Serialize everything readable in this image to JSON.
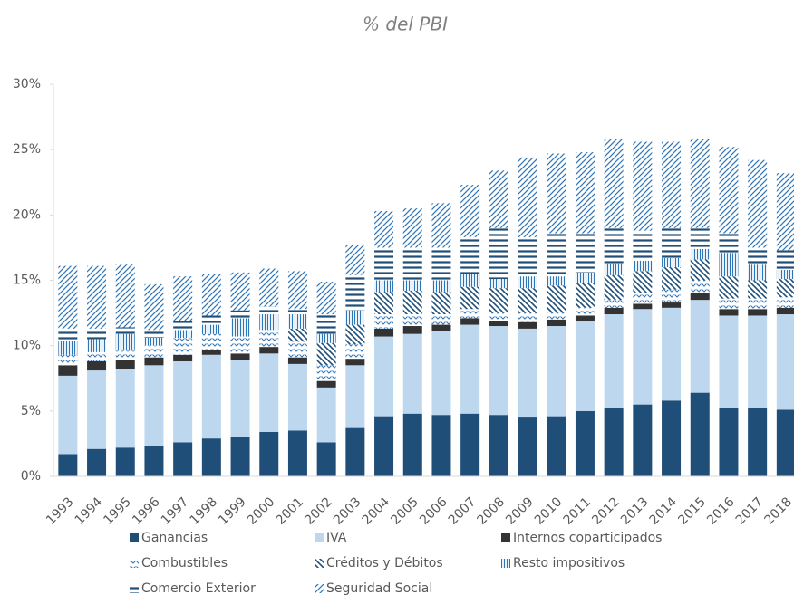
{
  "chart_data": {
    "type": "stacked-bar",
    "title": "% del PBI",
    "categories": [
      "1993",
      "1994",
      "1995",
      "1996",
      "1997",
      "1998",
      "1999",
      "2000",
      "2001",
      "2002",
      "2003",
      "2004",
      "2005",
      "2006",
      "2007",
      "2008",
      "2009",
      "2010",
      "2011",
      "2012",
      "2013",
      "2014",
      "2015",
      "2016",
      "2017",
      "2018"
    ],
    "series": [
      {
        "name": "Ganancias",
        "color": "#1f4e79",
        "pattern": "solid",
        "values": [
          1.7,
          2.1,
          2.2,
          2.3,
          2.6,
          2.9,
          3.0,
          3.4,
          3.5,
          2.6,
          3.7,
          4.6,
          4.8,
          4.7,
          4.8,
          4.7,
          4.5,
          4.6,
          5.0,
          5.2,
          5.5,
          5.8,
          6.4,
          5.2,
          5.2,
          5.1
        ]
      },
      {
        "name": "IVA",
        "color": "#bdd7ee",
        "pattern": "solid",
        "values": [
          6.0,
          6.0,
          6.0,
          6.2,
          6.2,
          6.4,
          5.9,
          6.0,
          5.1,
          4.2,
          4.8,
          6.1,
          6.1,
          6.4,
          6.8,
          6.8,
          6.8,
          6.9,
          6.9,
          7.2,
          7.3,
          7.1,
          7.1,
          7.1,
          7.1,
          7.3
        ]
      },
      {
        "name": "Internos coparticipados",
        "color": "#333333",
        "pattern": "solid",
        "values": [
          0.8,
          0.7,
          0.7,
          0.6,
          0.5,
          0.4,
          0.5,
          0.5,
          0.5,
          0.5,
          0.5,
          0.6,
          0.6,
          0.5,
          0.5,
          0.4,
          0.5,
          0.5,
          0.4,
          0.5,
          0.4,
          0.4,
          0.5,
          0.5,
          0.5,
          0.5
        ]
      },
      {
        "name": "Combustibles",
        "color": "#2e75b6",
        "pattern": "chevron",
        "values": [
          0.8,
          0.7,
          0.7,
          0.9,
          1.3,
          1.2,
          1.3,
          1.3,
          1.2,
          1.2,
          1.1,
          1.1,
          0.9,
          0.8,
          0.7,
          0.6,
          0.7,
          0.6,
          0.6,
          0.6,
          0.8,
          1.0,
          1.0,
          0.8,
          0.8,
          0.8
        ]
      },
      {
        "name": "Créditos y Débitos",
        "color": "#1f4e79",
        "pattern": "backslash",
        "values": [
          0,
          0,
          0,
          0,
          0,
          0,
          0,
          0,
          1.0,
          1.7,
          1.5,
          1.7,
          1.8,
          1.7,
          1.7,
          1.9,
          1.9,
          2.0,
          1.9,
          1.9,
          1.7,
          1.7,
          1.6,
          1.7,
          1.4,
          1.4
        ]
      },
      {
        "name": "Resto impositivos",
        "color": "#2e75b6",
        "pattern": "vertical",
        "values": [
          1.1,
          1.0,
          1.3,
          0.6,
          0.6,
          0.7,
          1.4,
          1.2,
          1.1,
          0.7,
          1.1,
          0.9,
          0.8,
          0.9,
          1.0,
          0.7,
          0.9,
          0.7,
          0.8,
          0.9,
          0.8,
          0.7,
          0.8,
          1.8,
          1.2,
          0.7
        ]
      },
      {
        "name": "Comercio Exterior",
        "color": "#1f4e79",
        "pattern": "horizontal",
        "values": [
          0.9,
          0.8,
          0.5,
          0.6,
          0.7,
          0.7,
          0.6,
          0.6,
          0.4,
          1.5,
          2.7,
          2.5,
          2.5,
          2.5,
          2.8,
          3.9,
          3.0,
          3.3,
          3.0,
          2.7,
          2.3,
          2.3,
          1.6,
          1.5,
          1.3,
          1.5
        ]
      },
      {
        "name": "Seguridad Social",
        "color": "#2e75b6",
        "pattern": "slash",
        "values": [
          4.8,
          4.8,
          4.8,
          3.5,
          3.4,
          3.2,
          2.9,
          2.9,
          2.9,
          2.5,
          2.3,
          2.8,
          3.0,
          3.4,
          4.0,
          4.4,
          6.1,
          6.1,
          6.2,
          6.8,
          6.8,
          6.6,
          6.8,
          6.6,
          6.7,
          5.9
        ]
      }
    ],
    "ylim": [
      0,
      30
    ],
    "yticks": [
      {
        "value": 0,
        "label": "0%"
      },
      {
        "value": 5,
        "label": "5%"
      },
      {
        "value": 10,
        "label": "10%"
      },
      {
        "value": 15,
        "label": "15%"
      },
      {
        "value": 20,
        "label": "20%"
      },
      {
        "value": 25,
        "label": "25%"
      },
      {
        "value": 30,
        "label": "30%"
      }
    ],
    "grid": false
  }
}
